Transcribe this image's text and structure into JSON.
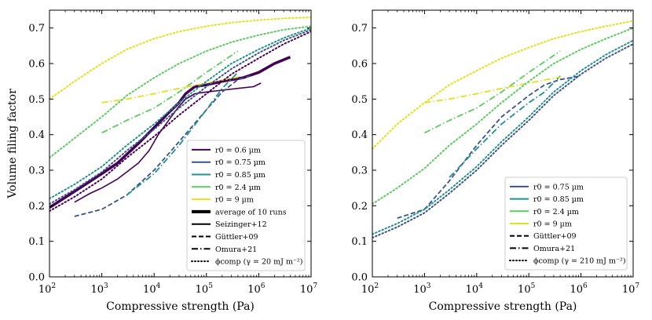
{
  "chart_data": [
    {
      "type": "line",
      "xscale": "log",
      "xlabel": "Compressive strength (Pa)",
      "ylabel": "Volume filing factor",
      "xlim": [
        100,
        10000000
      ],
      "ylim": [
        0.0,
        0.75
      ],
      "xticks": [
        100,
        1000,
        10000,
        100000,
        1000000,
        10000000
      ],
      "xtick_labels": [
        [
          "10",
          "2"
        ],
        [
          "10",
          "3"
        ],
        [
          "10",
          "4"
        ],
        [
          "10",
          "5"
        ],
        [
          "10",
          "6"
        ],
        [
          "10",
          "7"
        ]
      ],
      "yticks": [
        "0.0",
        "0.1",
        "0.2",
        "0.3",
        "0.4",
        "0.5",
        "0.6",
        "0.7"
      ],
      "legend": {
        "position": "lower right",
        "entries": [
          {
            "label": "r0 = 0.6 µm",
            "color": "#440154",
            "style": "solid",
            "width": 2
          },
          {
            "label": "r0 = 0.75 µm",
            "color": "#3b528b",
            "style": "solid",
            "width": 2
          },
          {
            "label": "r0 = 0.85 µm",
            "color": "#21918c",
            "style": "solid",
            "width": 2
          },
          {
            "label": "r0 = 2.4 µm",
            "color": "#5ec962",
            "style": "solid",
            "width": 2
          },
          {
            "label": "r0 = 9 µm",
            "color": "#e2e01c",
            "style": "solid",
            "width": 2
          },
          {
            "label": "average of 10 runs",
            "color": "#000000",
            "style": "solid",
            "width": 4
          },
          {
            "label": "Seizinger+12",
            "color": "#000000",
            "style": "solid",
            "width": 2
          },
          {
            "label": "Güttler+09",
            "color": "#000000",
            "style": "dashed",
            "width": 2
          },
          {
            "label": "Omura+21",
            "color": "#000000",
            "style": "dashdot",
            "width": 2
          },
          {
            "label": "ϕcomp (γ = 20 mJ m⁻²)",
            "color": "#000000",
            "style": "dotted",
            "width": 2
          }
        ]
      },
      "series": [
        {
          "name": "average of 10 runs r0=0.6",
          "color": "#440154",
          "style": "solid",
          "width": 3.5,
          "x": [
            100,
            300,
            1000,
            2000,
            5000,
            10000,
            20000,
            30000,
            40000,
            60000,
            100000,
            200000,
            500000,
            1000000,
            2000000,
            4000000
          ],
          "y": [
            0.195,
            0.24,
            0.29,
            0.32,
            0.375,
            0.42,
            0.465,
            0.49,
            0.515,
            0.535,
            0.54,
            0.55,
            0.56,
            0.575,
            0.6,
            0.618
          ]
        },
        {
          "name": "Seizinger+12 r0=0.6",
          "color": "#440154",
          "style": "solid",
          "width": 1.6,
          "x": [
            300,
            600,
            1000,
            2000,
            3000,
            5000,
            8000,
            12000,
            20000,
            30000,
            40000,
            60000,
            100000,
            200000,
            400000,
            800000,
            1100000
          ],
          "y": [
            0.21,
            0.235,
            0.25,
            0.275,
            0.295,
            0.32,
            0.355,
            0.4,
            0.445,
            0.48,
            0.5,
            0.515,
            0.52,
            0.525,
            0.53,
            0.535,
            0.545
          ]
        },
        {
          "name": "Güttler+09 r0=0.75",
          "color": "#3b528b",
          "style": "dashed",
          "width": 1.8,
          "x": [
            300,
            1000,
            3000,
            10000,
            30000,
            100000,
            200000,
            400000,
            700000
          ],
          "y": [
            0.17,
            0.19,
            0.23,
            0.3,
            0.38,
            0.47,
            0.52,
            0.555,
            0.565
          ]
        },
        {
          "name": "Omura+21 r0=0.85",
          "color": "#21918c",
          "style": "dashdot",
          "width": 1.8,
          "x": [
            3000,
            10000,
            30000,
            100000,
            200000,
            400000
          ],
          "y": [
            0.23,
            0.29,
            0.37,
            0.47,
            0.53,
            0.575
          ]
        },
        {
          "name": "Omura+21 r0=2.4",
          "color": "#5ec962",
          "style": "dashdot",
          "width": 1.8,
          "x": [
            1000,
            3000,
            10000,
            30000,
            100000,
            400000
          ],
          "y": [
            0.405,
            0.44,
            0.475,
            0.52,
            0.575,
            0.635
          ]
        },
        {
          "name": "Omura+21 r0=9",
          "color": "#e2e01c",
          "style": "dashdot",
          "width": 1.8,
          "x": [
            1000,
            3000,
            10000,
            30000,
            100000,
            400000
          ],
          "y": [
            0.49,
            0.5,
            0.515,
            0.53,
            0.545,
            0.562
          ]
        },
        {
          "name": "phi_comp r0=9",
          "color": "#e2e01c",
          "style": "dotted",
          "width": 2,
          "x": [
            100,
            300,
            1000,
            3000,
            10000,
            30000,
            100000,
            300000,
            1000000,
            3000000,
            10000000
          ],
          "y": [
            0.5,
            0.55,
            0.6,
            0.64,
            0.67,
            0.69,
            0.705,
            0.715,
            0.722,
            0.727,
            0.73
          ]
        },
        {
          "name": "phi_comp r0=2.4",
          "color": "#5ec962",
          "style": "dotted",
          "width": 2,
          "x": [
            100,
            300,
            1000,
            3000,
            10000,
            30000,
            100000,
            300000,
            1000000,
            3000000,
            10000000
          ],
          "y": [
            0.335,
            0.39,
            0.45,
            0.51,
            0.56,
            0.6,
            0.635,
            0.66,
            0.68,
            0.695,
            0.705
          ]
        },
        {
          "name": "phi_comp r0=0.85",
          "color": "#21918c",
          "style": "dotted",
          "width": 2,
          "x": [
            100,
            300,
            1000,
            3000,
            10000,
            30000,
            100000,
            300000,
            1000000,
            3000000,
            10000000
          ],
          "y": [
            0.22,
            0.26,
            0.31,
            0.37,
            0.43,
            0.49,
            0.55,
            0.6,
            0.64,
            0.672,
            0.7
          ]
        },
        {
          "name": "phi_comp r0=0.75",
          "color": "#3b528b",
          "style": "dotted",
          "width": 2,
          "x": [
            100,
            300,
            1000,
            3000,
            10000,
            30000,
            100000,
            300000,
            1000000,
            3000000,
            10000000
          ],
          "y": [
            0.205,
            0.245,
            0.295,
            0.355,
            0.415,
            0.475,
            0.535,
            0.585,
            0.63,
            0.665,
            0.695
          ]
        },
        {
          "name": "phi_comp r0=0.6",
          "color": "#440154",
          "style": "dotted",
          "width": 2,
          "x": [
            100,
            300,
            1000,
            3000,
            10000,
            30000,
            100000,
            300000,
            1000000,
            3000000,
            10000000
          ],
          "y": [
            0.185,
            0.225,
            0.275,
            0.335,
            0.395,
            0.455,
            0.515,
            0.57,
            0.615,
            0.655,
            0.69
          ]
        }
      ]
    },
    {
      "type": "line",
      "xscale": "log",
      "xlabel": "Compressive strength (Pa)",
      "ylabel": "",
      "xlim": [
        100,
        10000000
      ],
      "ylim": [
        0.0,
        0.75
      ],
      "xticks": [
        100,
        1000,
        10000,
        100000,
        1000000,
        10000000
      ],
      "xtick_labels": [
        [
          "10",
          "2"
        ],
        [
          "10",
          "3"
        ],
        [
          "10",
          "4"
        ],
        [
          "10",
          "5"
        ],
        [
          "10",
          "6"
        ],
        [
          "10",
          "7"
        ]
      ],
      "yticks": [
        "0.0",
        "0.1",
        "0.2",
        "0.3",
        "0.4",
        "0.5",
        "0.6",
        "0.7"
      ],
      "legend": {
        "position": "lower right",
        "entries": [
          {
            "label": "r0 = 0.75 µm",
            "color": "#3b528b",
            "style": "solid",
            "width": 2
          },
          {
            "label": "r0 = 0.85 µm",
            "color": "#21918c",
            "style": "solid",
            "width": 2
          },
          {
            "label": "r0 = 2.4 µm",
            "color": "#5ec962",
            "style": "solid",
            "width": 2
          },
          {
            "label": "r0 = 9 µm",
            "color": "#e2e01c",
            "style": "solid",
            "width": 2
          },
          {
            "label": "Güttler+09",
            "color": "#000000",
            "style": "dashed",
            "width": 2
          },
          {
            "label": "Omura+21",
            "color": "#000000",
            "style": "dashdot",
            "width": 2
          },
          {
            "label": "ϕcomp (γ = 210 mJ m⁻²)",
            "color": "#000000",
            "style": "dotted",
            "width": 2
          }
        ]
      },
      "series": [
        {
          "name": "Güttler+09 r0=0.75",
          "color": "#3b528b",
          "style": "dashed",
          "width": 1.8,
          "x": [
            300,
            1000,
            3000,
            10000,
            30000,
            100000,
            200000,
            400000,
            1000000
          ],
          "y": [
            0.165,
            0.19,
            0.27,
            0.37,
            0.45,
            0.51,
            0.54,
            0.555,
            0.565
          ]
        },
        {
          "name": "Omura+21 r0=0.85",
          "color": "#21918c",
          "style": "dashdot",
          "width": 1.8,
          "x": [
            3000,
            10000,
            30000,
            100000,
            200000,
            400000
          ],
          "y": [
            0.28,
            0.36,
            0.43,
            0.49,
            0.52,
            0.565
          ]
        },
        {
          "name": "Omura+21 r0=2.4",
          "color": "#5ec962",
          "style": "dashdot",
          "width": 1.8,
          "x": [
            1000,
            3000,
            10000,
            30000,
            100000,
            400000
          ],
          "y": [
            0.405,
            0.44,
            0.475,
            0.52,
            0.575,
            0.635
          ]
        },
        {
          "name": "Omura+21 r0=9",
          "color": "#e2e01c",
          "style": "dashdot",
          "width": 1.8,
          "x": [
            1000,
            3000,
            10000,
            30000,
            100000,
            400000
          ],
          "y": [
            0.49,
            0.5,
            0.515,
            0.53,
            0.545,
            0.562
          ]
        },
        {
          "name": "phi_comp r0=9",
          "color": "#e2e01c",
          "style": "dotted",
          "width": 2,
          "x": [
            100,
            300,
            1000,
            3000,
            10000,
            30000,
            100000,
            300000,
            1000000,
            3000000,
            10000000
          ],
          "y": [
            0.36,
            0.43,
            0.49,
            0.54,
            0.58,
            0.615,
            0.645,
            0.67,
            0.69,
            0.705,
            0.72
          ]
        },
        {
          "name": "phi_comp r0=2.4",
          "color": "#5ec962",
          "style": "dotted",
          "width": 2,
          "x": [
            100,
            300,
            1000,
            3000,
            10000,
            30000,
            100000,
            300000,
            1000000,
            3000000,
            10000000
          ],
          "y": [
            0.205,
            0.25,
            0.305,
            0.37,
            0.43,
            0.49,
            0.55,
            0.6,
            0.64,
            0.67,
            0.7
          ]
        },
        {
          "name": "phi_comp r0=0.85",
          "color": "#21918c",
          "style": "dotted",
          "width": 2,
          "x": [
            100,
            300,
            1000,
            3000,
            10000,
            30000,
            100000,
            300000,
            1000000,
            3000000,
            10000000
          ],
          "y": [
            0.12,
            0.15,
            0.19,
            0.245,
            0.31,
            0.38,
            0.45,
            0.52,
            0.58,
            0.625,
            0.665
          ]
        },
        {
          "name": "phi_comp r0=0.75",
          "color": "#3b528b",
          "style": "dotted",
          "width": 2,
          "x": [
            100,
            300,
            1000,
            3000,
            10000,
            30000,
            100000,
            300000,
            1000000,
            3000000,
            10000000
          ],
          "y": [
            0.11,
            0.14,
            0.18,
            0.235,
            0.3,
            0.37,
            0.44,
            0.51,
            0.57,
            0.615,
            0.655
          ]
        }
      ]
    }
  ]
}
